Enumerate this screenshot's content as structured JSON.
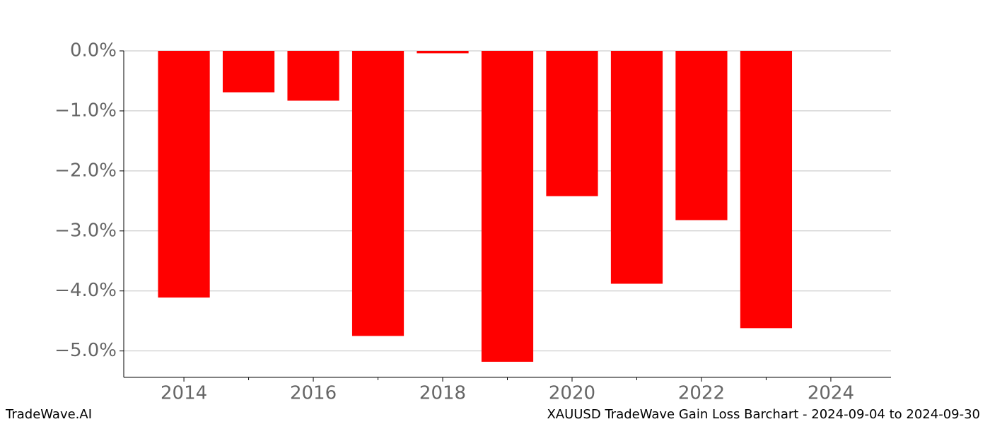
{
  "chart_data": {
    "type": "bar",
    "x": [
      2014,
      2015,
      2016,
      2017,
      2018,
      2019,
      2020,
      2021,
      2022,
      2023
    ],
    "values": [
      -4.11,
      -0.69,
      -0.83,
      -4.75,
      -0.04,
      -5.18,
      -2.42,
      -3.88,
      -2.82,
      -4.62
    ],
    "color": "#ff0000",
    "xlim": [
      2013.07,
      2024.93
    ],
    "xticks": [
      2014,
      2016,
      2018,
      2020,
      2022,
      2024
    ],
    "xminorticks": [
      2015,
      2017,
      2019,
      2021,
      2023
    ],
    "ylim": [
      -5.44,
      0
    ],
    "yticks": [
      {
        "value": 0,
        "label": "0.0%"
      },
      {
        "value": -1,
        "label": "−1.0%"
      },
      {
        "value": -2,
        "label": "−2.0%"
      },
      {
        "value": -3,
        "label": "−3.0%"
      },
      {
        "value": -4,
        "label": "−4.0%"
      },
      {
        "value": -5,
        "label": "−5.0%"
      }
    ],
    "grid": true,
    "bar_width": 0.8,
    "watermark": "TradeWave.AI",
    "caption": "XAUUSD TradeWave Gain Loss Barchart - 2024-09-04 to 2024-09-30"
  }
}
